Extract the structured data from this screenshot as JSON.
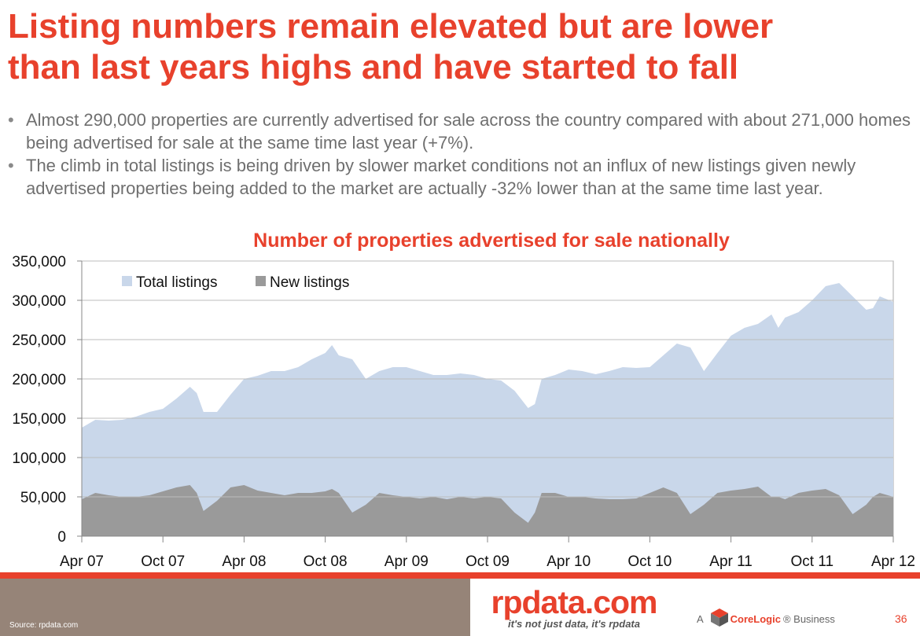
{
  "slide": {
    "title_line1": "Listing numbers remain elevated but are lower",
    "title_line2": "than last years highs and have started to fall",
    "bullets": [
      "Almost 290,000 properties are currently advertised for sale across the country compared with about 271,000 homes being advertised for sale at the same time last year (+7%).",
      "The climb in total listings is being driven by slower market conditions not an influx of new listings given newly advertised properties being added to the market are actually -32% lower than at the same time last year."
    ],
    "page_number": "36"
  },
  "footer": {
    "source": "Source:  rpdata.com",
    "logo": "rpdata.com",
    "tagline": "it's not just data, it's rpdata",
    "business_prefix": "A",
    "business_brand": "CoreLogic",
    "business_suffix": "® Business"
  },
  "colors": {
    "accent": "#e8412c",
    "total_fill": "#c9d7ea",
    "new_fill": "#9a9a9a",
    "footer_brown": "#968478"
  },
  "chart_data": {
    "type": "area",
    "title": "Number of properties advertised for sale nationally",
    "x_ticks": [
      "Apr 07",
      "Oct 07",
      "Apr 08",
      "Oct 08",
      "Apr 09",
      "Oct 09",
      "Apr 10",
      "Oct 10",
      "Apr 11",
      "Oct 11",
      "Apr 12"
    ],
    "x_tick_months": [
      0,
      6,
      12,
      18,
      24,
      30,
      36,
      42,
      48,
      54,
      60
    ],
    "ylim": [
      0,
      350000
    ],
    "y_ticks": [
      "0",
      "50,000",
      "100,000",
      "150,000",
      "200,000",
      "250,000",
      "300,000",
      "350,000"
    ],
    "y_tick_values": [
      0,
      50000,
      100000,
      150000,
      200000,
      250000,
      300000,
      350000
    ],
    "legend_position": "top-left",
    "grid": true,
    "series": [
      {
        "name": "Total listings",
        "month": [
          0,
          1,
          2,
          3,
          4,
          5,
          6,
          7,
          8,
          8.5,
          9,
          10,
          11,
          12,
          13,
          14,
          15,
          16,
          17,
          18,
          18.5,
          19,
          20,
          21,
          22,
          23,
          24,
          25,
          26,
          27,
          28,
          29,
          30,
          31,
          32,
          33,
          33.5,
          34,
          35,
          36,
          37,
          38,
          39,
          40,
          41,
          42,
          43,
          44,
          45,
          46,
          47,
          48,
          49,
          50,
          51,
          51.5,
          52,
          53,
          54,
          55,
          56,
          57,
          58,
          58.5,
          59,
          60
        ],
        "values": [
          138000,
          148000,
          147000,
          148000,
          152000,
          158000,
          162000,
          175000,
          190000,
          182000,
          158000,
          158000,
          180000,
          200000,
          204000,
          210000,
          210000,
          215000,
          225000,
          233000,
          243000,
          230000,
          225000,
          200000,
          210000,
          215000,
          215000,
          210000,
          205000,
          205000,
          207000,
          205000,
          200000,
          198000,
          185000,
          163000,
          168000,
          200000,
          205000,
          212000,
          210000,
          206000,
          210000,
          215000,
          214000,
          215000,
          230000,
          245000,
          240000,
          210000,
          233000,
          255000,
          265000,
          270000,
          282000,
          265000,
          278000,
          285000,
          300000,
          318000,
          322000,
          305000,
          288000,
          290000,
          305000,
          298000
        ]
      },
      {
        "name": "New listings",
        "month": [
          0,
          1,
          2,
          3,
          4,
          5,
          6,
          7,
          8,
          8.5,
          9,
          10,
          11,
          12,
          13,
          14,
          15,
          16,
          17,
          18,
          18.5,
          19,
          20,
          21,
          22,
          23,
          24,
          25,
          26,
          27,
          28,
          29,
          30,
          31,
          32,
          33,
          33.5,
          34,
          35,
          36,
          37,
          38,
          39,
          40,
          41,
          42,
          43,
          44,
          45,
          46,
          47,
          48,
          49,
          50,
          51,
          51.5,
          52,
          53,
          54,
          55,
          56,
          57,
          58,
          58.5,
          59,
          60
        ],
        "values": [
          47000,
          55000,
          52000,
          50000,
          50000,
          52000,
          57000,
          62000,
          65000,
          55000,
          32000,
          45000,
          62000,
          65000,
          58000,
          55000,
          52000,
          55000,
          55000,
          57000,
          60000,
          55000,
          30000,
          40000,
          55000,
          52000,
          50000,
          48000,
          50000,
          47000,
          50000,
          48000,
          50000,
          48000,
          30000,
          17000,
          30000,
          55000,
          55000,
          50000,
          50000,
          48000,
          47000,
          47000,
          48000,
          55000,
          62000,
          55000,
          28000,
          40000,
          55000,
          58000,
          60000,
          63000,
          50000,
          50000,
          47000,
          55000,
          58000,
          60000,
          52000,
          28000,
          40000,
          50000,
          55000,
          50000
        ]
      }
    ]
  }
}
